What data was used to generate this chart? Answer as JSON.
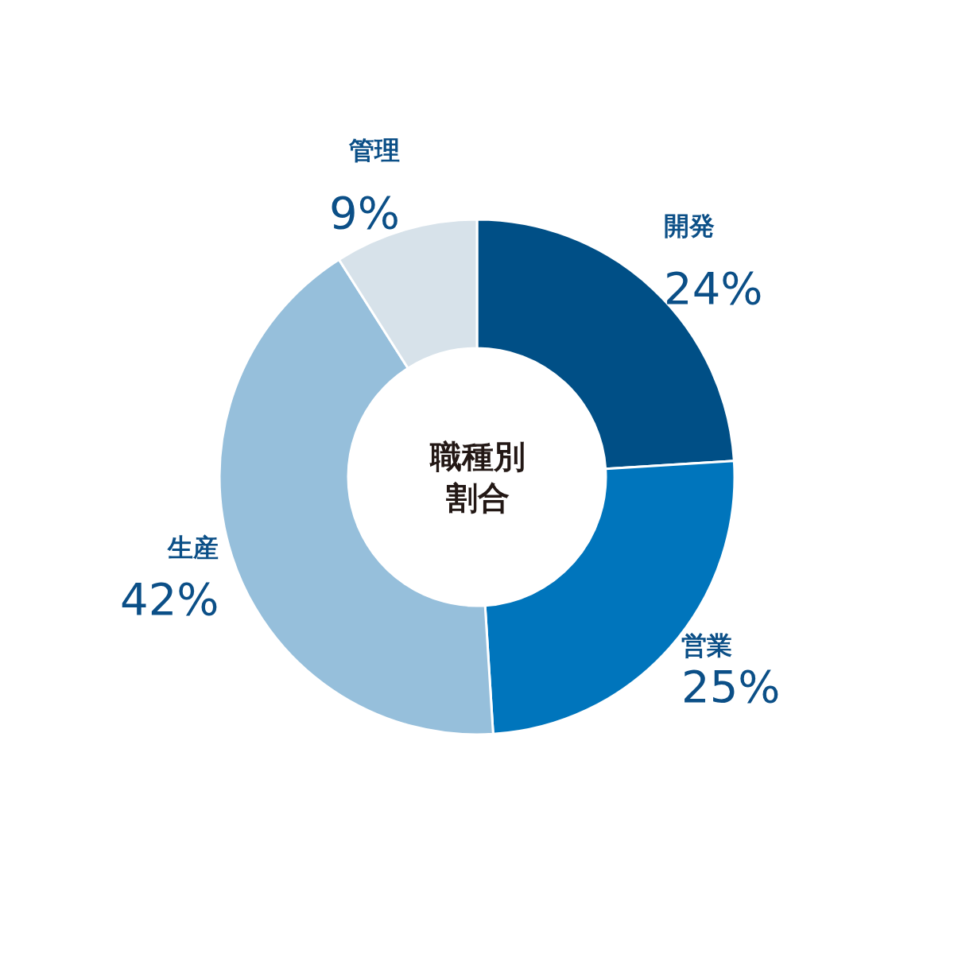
{
  "chart_data": {
    "type": "donut",
    "title": "職種別割合",
    "categories": [
      "開発",
      "営業",
      "生産",
      "管理"
    ],
    "values": [
      24,
      25,
      42,
      9
    ],
    "value_labels": [
      "24%",
      "25%",
      "42%",
      "9%"
    ],
    "colors": [
      "#004f86",
      "#0075bc",
      "#96bfdb",
      "#d7e2ea"
    ],
    "legend": false
  }
}
